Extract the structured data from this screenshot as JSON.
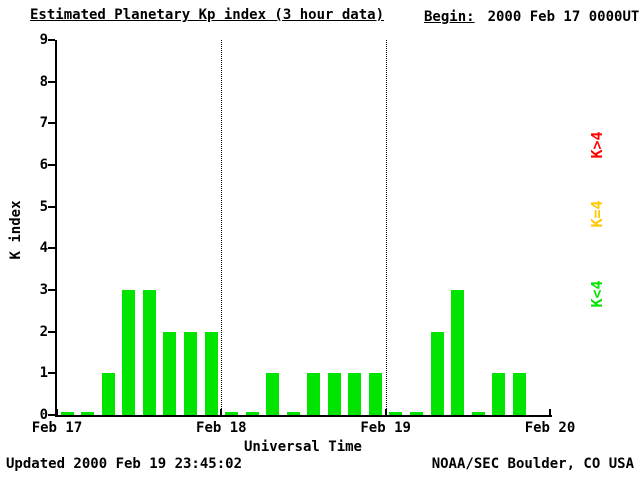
{
  "chart_data": {
    "type": "bar",
    "title": "Estimated Planetary Kp index (3 hour data)",
    "begin_label": "Begin:",
    "begin_value": "2000 Feb 17 0000UT",
    "xlabel": "Universal Time",
    "ylabel": "K index",
    "ylim": [
      0,
      9
    ],
    "yticks": [
      0,
      1,
      2,
      3,
      4,
      5,
      6,
      7,
      8,
      9
    ],
    "xtick_labels": [
      "Feb 17",
      "Feb 18",
      "Feb 19",
      "Feb 20"
    ],
    "interval_hours": 3,
    "values": [
      0,
      0,
      1,
      3,
      3,
      2,
      2,
      2,
      0,
      0,
      1,
      0,
      1,
      1,
      1,
      1,
      0,
      0,
      2,
      3,
      0,
      1,
      1,
      null
    ],
    "legend": [
      {
        "label": "K>4",
        "color": "#ff0000"
      },
      {
        "label": "K=4",
        "color": "#ffc800"
      },
      {
        "label": "K<4",
        "color": "#00e400"
      }
    ],
    "footer_left": "Updated 2000 Feb 19 23:45:02",
    "footer_right": "NOAA/SEC Boulder, CO USA"
  }
}
